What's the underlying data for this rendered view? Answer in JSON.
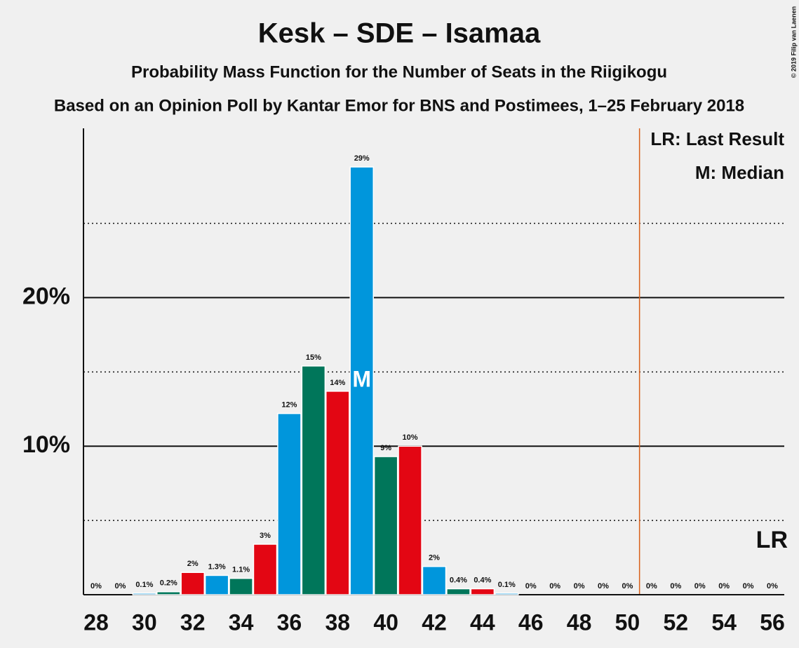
{
  "chart_data": {
    "type": "bar",
    "title": "Kesk – SDE – Isamaa",
    "subtitle": "Probability Mass Function for the Number of Seats in the Riigikogu",
    "subtitle2": "Based on an Opinion Poll by Kantar Emor for BNS and Postimees, 1–25 February 2018",
    "copyright": "© 2019 Filip van Laenen",
    "x": [
      28,
      29,
      30,
      31,
      32,
      33,
      34,
      35,
      36,
      37,
      38,
      39,
      40,
      41,
      42,
      43,
      44,
      45,
      46,
      47,
      48,
      49,
      50,
      51,
      52,
      53,
      54,
      55,
      56
    ],
    "values": [
      0,
      0,
      0.1,
      0.2,
      1.5,
      1.3,
      1.1,
      3.4,
      12.2,
      15.4,
      13.7,
      28.8,
      9.3,
      10.0,
      1.9,
      0.4,
      0.4,
      0.1,
      0,
      0,
      0,
      0,
      0,
      0,
      0,
      0,
      0,
      0,
      0
    ],
    "value_labels": [
      "0%",
      "0%",
      "0.1%",
      "0.2%",
      "2%",
      "1.3%",
      "1.1%",
      "3%",
      "12%",
      "15%",
      "14%",
      "29%",
      "9%",
      "10%",
      "2%",
      "0.4%",
      "0.4%",
      "0.1%",
      "0%",
      "0%",
      "0%",
      "0%",
      "0%",
      "0%",
      "0%",
      "0%",
      "0%",
      "0%",
      "0%"
    ],
    "colors": [
      "#00765a",
      "#e30613",
      "#0096dc",
      "#00765a",
      "#e30613",
      "#0096dc",
      "#00765a",
      "#e30613",
      "#0096dc",
      "#00765a",
      "#e30613",
      "#0096dc",
      "#00765a",
      "#e30613",
      "#0096dc",
      "#00765a",
      "#e30613",
      "#0096dc",
      "#00765a",
      "#e30613",
      "#0096dc",
      "#00765a",
      "#e30613",
      "#0096dc",
      "#00765a",
      "#e30613",
      "#0096dc",
      "#00765a",
      "#e30613"
    ],
    "xlim": [
      27.5,
      56.5
    ],
    "xticks": [
      28,
      30,
      32,
      34,
      36,
      38,
      40,
      42,
      44,
      46,
      48,
      50,
      52,
      54,
      56
    ],
    "ylim": [
      0,
      31.4
    ],
    "yticks": [
      {
        "value": 10,
        "label": "10%"
      },
      {
        "value": 20,
        "label": "20%"
      }
    ],
    "minor_yticks": [
      5,
      15,
      25
    ],
    "grid": true,
    "majority_line": 50.5,
    "median": 39,
    "median_label": "M",
    "last_result": 56,
    "last_result_label": "LR",
    "legend": [
      "LR: Last Result",
      "M: Median"
    ]
  }
}
